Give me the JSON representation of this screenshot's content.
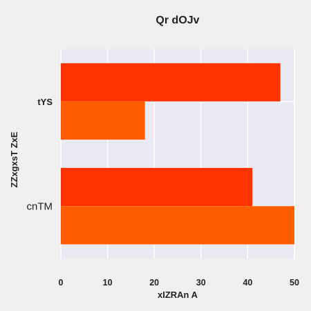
{
  "chart_data": {
    "type": "bar",
    "orientation": "horizontal",
    "title": "Qr dOJv",
    "xlabel": "xIZRAn A",
    "ylabel": "ZZxgxsT ZxE",
    "categories": [
      "tYS",
      "cnTM"
    ],
    "series": [
      {
        "color": "#ff3300",
        "values": [
          47,
          41
        ]
      },
      {
        "color": "#ff5e00",
        "values": [
          18,
          50
        ]
      }
    ],
    "xlim": [
      0,
      50
    ],
    "xticks": [
      0,
      10,
      20,
      30,
      40,
      50
    ],
    "xtick_labels": [
      "0",
      "10",
      "20",
      "30",
      "40",
      "50"
    ],
    "grid": true,
    "background_color": "#eaeaf2",
    "grid_color": "#ffffff"
  }
}
